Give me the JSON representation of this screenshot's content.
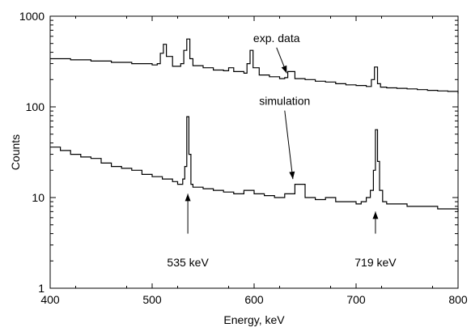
{
  "chart_data": {
    "type": "line",
    "title": "",
    "xlabel": "Energy, keV",
    "ylabel": "Counts",
    "xlim": [
      400,
      800
    ],
    "ylim": [
      1,
      1000
    ],
    "y_scale": "log",
    "grid": false,
    "legend": "none",
    "x_ticks": [
      400,
      500,
      600,
      700,
      800
    ],
    "x_tick_labels": [
      "400",
      "500",
      "600",
      "700",
      "800"
    ],
    "y_ticks": [
      1,
      10,
      100,
      1000
    ],
    "y_tick_labels": [
      "1",
      "10",
      "100",
      "1000"
    ],
    "series": [
      {
        "label": "exp. data",
        "color": "#000000",
        "x": [
          400,
          420,
          440,
          460,
          480,
          500,
          505,
          508,
          511,
          514,
          520,
          528,
          531,
          534,
          537,
          540,
          550,
          560,
          570,
          575,
          580,
          590,
          593,
          596,
          599,
          605,
          615,
          625,
          630,
          633,
          640,
          650,
          660,
          670,
          680,
          690,
          700,
          710,
          715,
          718,
          721,
          724,
          730,
          740,
          750,
          760,
          770,
          780,
          790,
          800
        ],
        "y": [
          340,
          330,
          320,
          310,
          300,
          290,
          300,
          390,
          490,
          360,
          280,
          300,
          420,
          560,
          340,
          285,
          270,
          255,
          250,
          270,
          245,
          235,
          300,
          420,
          270,
          225,
          215,
          205,
          210,
          245,
          205,
          200,
          192,
          188,
          180,
          175,
          172,
          168,
          200,
          275,
          180,
          165,
          162,
          160,
          158,
          155,
          152,
          150,
          148,
          140
        ]
      },
      {
        "label": "simulation",
        "color": "#000000",
        "x": [
          400,
          410,
          420,
          430,
          440,
          450,
          460,
          470,
          480,
          490,
          500,
          510,
          520,
          525,
          530,
          532,
          534,
          536,
          538,
          540,
          550,
          560,
          570,
          580,
          590,
          600,
          610,
          620,
          630,
          640,
          650,
          660,
          670,
          680,
          690,
          700,
          705,
          710,
          714,
          717,
          719,
          721,
          723,
          726,
          730,
          740,
          750,
          760,
          770,
          780,
          790,
          800
        ],
        "y": [
          36,
          33,
          30,
          28,
          27,
          24,
          22,
          21,
          20,
          18,
          17,
          16,
          15,
          14,
          16,
          22,
          78,
          30,
          14,
          13,
          12.5,
          12,
          11.5,
          11,
          12,
          11,
          10.5,
          10,
          11,
          14,
          10,
          9.5,
          10,
          9,
          9,
          8.5,
          9,
          10,
          12,
          20,
          56,
          25,
          12,
          9,
          8.5,
          8.5,
          8,
          8,
          8,
          7.5,
          7.5,
          7
        ]
      }
    ],
    "annotations": [
      {
        "text": "exp. data",
        "x": 622,
        "y": 520,
        "arrow_to": [
          632,
          235
        ]
      },
      {
        "text": "simulation",
        "x": 630,
        "y": 105,
        "arrow_to": [
          638,
          16
        ]
      },
      {
        "text": "535 keV",
        "x": 535,
        "y": 1.75,
        "arrow_from": [
          535,
          4
        ],
        "arrow_to": [
          535,
          11
        ]
      },
      {
        "text": "719 keV",
        "x": 719,
        "y": 1.75,
        "arrow_from": [
          719,
          4
        ],
        "arrow_to": [
          719,
          7
        ]
      }
    ]
  }
}
